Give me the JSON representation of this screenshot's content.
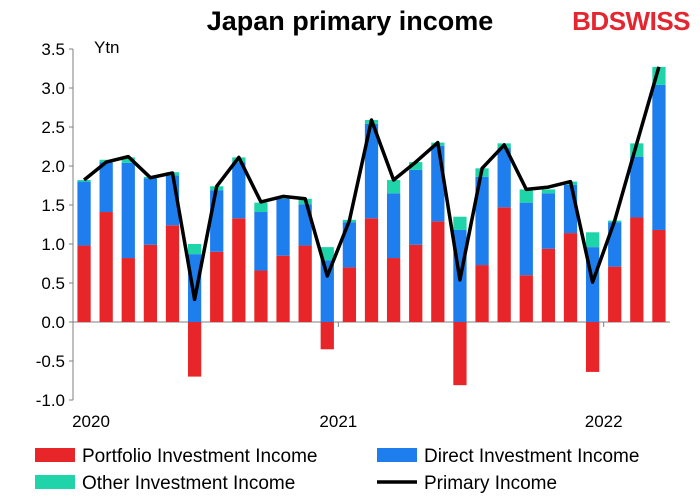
{
  "brand": {
    "name": "BDSWISS"
  },
  "chart_data": {
    "type": "bar",
    "title": "Japan primary income",
    "ylabel": "Ytn",
    "ylim": [
      -1.0,
      3.5
    ],
    "yticks": [
      "3.5",
      "3.0",
      "2.5",
      "2.0",
      "1.5",
      "1.0",
      "0.5",
      "0.0",
      "-0.5",
      "-1.0"
    ],
    "xticks": [
      "2020",
      "2021",
      "2022"
    ],
    "categories": [
      "2020-01",
      "2020-02",
      "2020-03",
      "2020-04",
      "2020-05",
      "2020-06",
      "2020-07",
      "2020-08",
      "2020-09",
      "2020-10",
      "2020-11",
      "2020-12",
      "2021-01",
      "2021-02",
      "2021-03",
      "2021-04",
      "2021-05",
      "2021-06",
      "2021-07",
      "2021-08",
      "2021-09",
      "2021-10",
      "2021-11",
      "2021-12",
      "2022-01",
      "2022-02",
      "2022-03"
    ],
    "series": [
      {
        "name": "Portfolio Investment Income",
        "color": "#e8262a",
        "values": [
          0.98,
          1.41,
          0.82,
          0.99,
          1.24,
          -0.7,
          0.9,
          1.33,
          0.66,
          0.85,
          0.98,
          -0.35,
          0.7,
          1.33,
          0.82,
          0.99,
          1.29,
          -0.81,
          0.73,
          1.47,
          0.6,
          0.94,
          1.14,
          -0.64,
          0.71,
          1.34,
          1.18
        ]
      },
      {
        "name": "Direct Investment Income",
        "color": "#1f7eee",
        "values": [
          0.82,
          0.64,
          1.22,
          0.85,
          0.64,
          0.87,
          0.79,
          0.72,
          0.75,
          0.73,
          0.53,
          0.79,
          0.58,
          1.21,
          0.83,
          0.96,
          0.97,
          1.18,
          1.13,
          0.76,
          0.93,
          0.71,
          0.62,
          0.96,
          0.57,
          0.78,
          1.86
        ]
      },
      {
        "name": "Other Investment Income",
        "color": "#1ed4a8",
        "values": [
          0.02,
          0.03,
          0.07,
          0.02,
          0.04,
          0.13,
          0.05,
          0.06,
          0.12,
          0.02,
          0.07,
          0.17,
          0.03,
          0.05,
          0.17,
          0.1,
          0.04,
          0.17,
          0.11,
          0.06,
          0.17,
          0.05,
          0.04,
          0.19,
          0.02,
          0.17,
          0.23
        ]
      },
      {
        "name": "Primary Income",
        "color": "#000000",
        "type": "line",
        "values": [
          1.82,
          2.05,
          2.12,
          1.85,
          1.91,
          0.29,
          1.74,
          2.11,
          1.54,
          1.61,
          1.58,
          0.59,
          1.3,
          2.59,
          1.82,
          2.05,
          2.3,
          0.54,
          1.97,
          2.27,
          1.7,
          1.73,
          1.8,
          0.51,
          1.3,
          2.29,
          3.27
        ]
      }
    ],
    "legend_position": "bottom"
  }
}
